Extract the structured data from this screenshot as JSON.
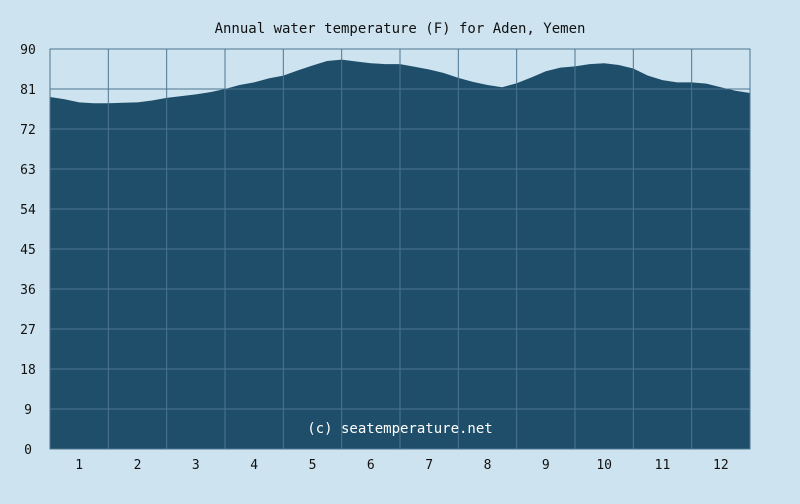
{
  "chart_data": {
    "type": "area",
    "title": "Annual water temperature (F) for Aden, Yemen",
    "xlabel": "",
    "ylabel": "",
    "ylim": [
      0,
      90
    ],
    "xlim": [
      0.5,
      12.5
    ],
    "yticks": [
      0,
      9,
      18,
      27,
      36,
      45,
      54,
      63,
      72,
      81,
      90
    ],
    "xticks": [
      1,
      2,
      3,
      4,
      5,
      6,
      7,
      8,
      9,
      10,
      11,
      12
    ],
    "grid": true,
    "x": [
      0.5,
      0.75,
      1.0,
      1.25,
      1.5,
      1.75,
      2.0,
      2.25,
      2.5,
      2.75,
      3.0,
      3.25,
      3.5,
      3.75,
      4.0,
      4.25,
      4.5,
      4.75,
      5.0,
      5.25,
      5.5,
      5.75,
      6.0,
      6.25,
      6.5,
      6.75,
      7.0,
      7.25,
      7.5,
      7.75,
      8.0,
      8.25,
      8.5,
      8.75,
      9.0,
      9.25,
      9.5,
      9.75,
      10.0,
      10.25,
      10.5,
      10.75,
      11.0,
      11.25,
      11.5,
      11.75,
      12.0,
      12.25,
      12.5
    ],
    "values": [
      79.2,
      78.7,
      78.0,
      77.8,
      77.8,
      77.9,
      78.0,
      78.4,
      79.0,
      79.4,
      79.8,
      80.3,
      81.0,
      81.9,
      82.5,
      83.4,
      84.0,
      85.2,
      86.3,
      87.3,
      87.6,
      87.2,
      86.8,
      86.6,
      86.6,
      86.0,
      85.4,
      84.6,
      83.5,
      82.6,
      81.9,
      81.4,
      82.3,
      83.6,
      85.0,
      85.8,
      86.1,
      86.6,
      86.8,
      86.4,
      85.6,
      84.0,
      83.0,
      82.5,
      82.5,
      82.2,
      81.4,
      80.6,
      80.1
    ],
    "fill_color": "#1f4e6a",
    "background_color": "#cde3ef",
    "gridline_color": "#4e7590",
    "watermark": "(c) seatemperature.net"
  }
}
